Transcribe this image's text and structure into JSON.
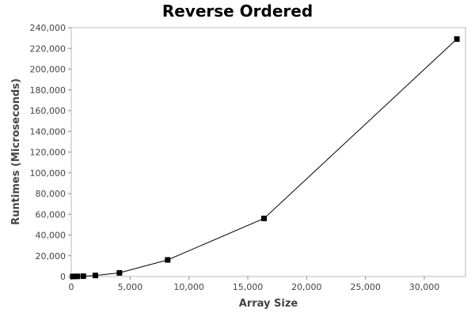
{
  "chart_data": {
    "type": "line",
    "title": "Reverse Ordered",
    "xlabel": "Array Size",
    "ylabel": "Runtimes (Microseconds)",
    "xlim": [
      0,
      33500
    ],
    "ylim": [
      0,
      240000
    ],
    "x_ticks": [
      {
        "value": 0,
        "label": "0"
      },
      {
        "value": 5000,
        "label": "5,000"
      },
      {
        "value": 10000,
        "label": "10,000"
      },
      {
        "value": 15000,
        "label": "15,000"
      },
      {
        "value": 20000,
        "label": "20,000"
      },
      {
        "value": 25000,
        "label": "25,000"
      },
      {
        "value": 30000,
        "label": "30,000"
      }
    ],
    "y_ticks": [
      {
        "value": 0,
        "label": "0"
      },
      {
        "value": 20000,
        "label": "20,000"
      },
      {
        "value": 40000,
        "label": "40,000"
      },
      {
        "value": 60000,
        "label": "60,000"
      },
      {
        "value": 80000,
        "label": "80,000"
      },
      {
        "value": 100000,
        "label": "100,000"
      },
      {
        "value": 120000,
        "label": "120,000"
      },
      {
        "value": 140000,
        "label": "140,000"
      },
      {
        "value": 160000,
        "label": "160,000"
      },
      {
        "value": 180000,
        "label": "180,000"
      },
      {
        "value": 200000,
        "label": "200,000"
      },
      {
        "value": 220000,
        "label": "220,000"
      },
      {
        "value": 240000,
        "label": "240,000"
      }
    ],
    "grid": false,
    "legend": "none",
    "series": [
      {
        "color": "#000000",
        "marker": "square",
        "points": [
          {
            "x": 128,
            "y": 30
          },
          {
            "x": 256,
            "y": 60
          },
          {
            "x": 512,
            "y": 150
          },
          {
            "x": 1024,
            "y": 300
          },
          {
            "x": 2048,
            "y": 1000
          },
          {
            "x": 4096,
            "y": 3500
          },
          {
            "x": 8192,
            "y": 16000
          },
          {
            "x": 16384,
            "y": 56000
          },
          {
            "x": 32768,
            "y": 229000
          }
        ]
      }
    ]
  }
}
